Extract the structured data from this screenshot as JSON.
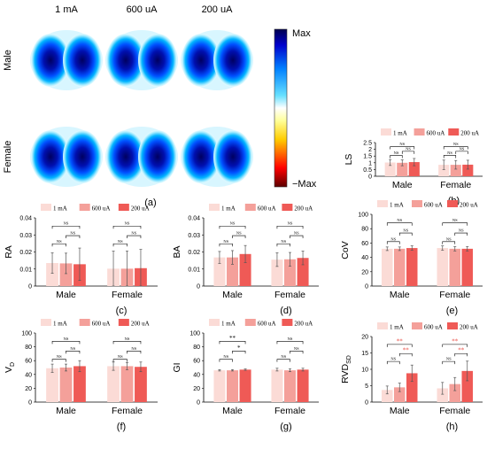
{
  "maps": {
    "columns": [
      "1 mA",
      "600 uA",
      "200 uA"
    ],
    "rows": [
      "Male",
      "Female"
    ],
    "colorbar": {
      "max_label": "Max",
      "min_label": "−Max",
      "colors": [
        "#ff0000",
        "#ff8c00",
        "#ffff66",
        "#ffffff",
        "#66ccff",
        "#0066ff",
        "#000080"
      ]
    },
    "panel_label": "(a)"
  },
  "chart_data": [
    {
      "type": "bar",
      "panel_label": "(b)",
      "ylabel": "LS",
      "ylim": [
        0,
        2.5
      ],
      "yticks": [
        "0",
        "0.5",
        "1",
        "1.5",
        "2",
        "2.5"
      ],
      "categories": [
        "Male",
        "Female"
      ],
      "series": [
        {
          "name": "1 mA",
          "values": [
            1.02,
            0.85
          ],
          "errors": [
            0.22,
            0.35
          ]
        },
        {
          "name": "600 uA",
          "values": [
            1.0,
            0.85
          ],
          "errors": [
            0.22,
            0.32
          ]
        },
        {
          "name": "200 uA",
          "values": [
            1.05,
            0.86
          ],
          "errors": [
            0.27,
            0.33
          ]
        }
      ],
      "significance": [
        [
          "NS",
          "NS",
          "NS"
        ],
        [
          "NS",
          "NS",
          "NS"
        ]
      ]
    },
    {
      "type": "bar",
      "panel_label": "(c)",
      "ylabel": "RA",
      "ylim": [
        0,
        0.04
      ],
      "yticks": [
        "0",
        "0.01",
        "0.02",
        "0.03",
        "0.04"
      ],
      "categories": [
        "Male",
        "Female"
      ],
      "series": [
        {
          "name": "1 mA",
          "values": [
            0.0135,
            0.0102
          ],
          "errors": [
            0.006,
            0.0103
          ]
        },
        {
          "name": "600 uA",
          "values": [
            0.0133,
            0.0102
          ],
          "errors": [
            0.006,
            0.0103
          ]
        },
        {
          "name": "200 uA",
          "values": [
            0.0128,
            0.0105
          ],
          "errors": [
            0.0095,
            0.011
          ]
        }
      ],
      "significance": [
        [
          "NS",
          "NS",
          "NS"
        ],
        [
          "NS",
          "NS",
          "NS"
        ]
      ]
    },
    {
      "type": "bar",
      "panel_label": "(d)",
      "ylabel": "BA",
      "ylim": [
        0,
        0.04
      ],
      "yticks": [
        "0",
        "0.01",
        "0.02",
        "0.03",
        "0.04"
      ],
      "categories": [
        "Male",
        "Female"
      ],
      "series": [
        {
          "name": "1 mA",
          "values": [
            0.0168,
            0.0155
          ],
          "errors": [
            0.0035,
            0.004
          ]
        },
        {
          "name": "600 uA",
          "values": [
            0.0168,
            0.0157
          ],
          "errors": [
            0.004,
            0.004
          ]
        },
        {
          "name": "200 uA",
          "values": [
            0.0188,
            0.0165
          ],
          "errors": [
            0.005,
            0.004
          ]
        }
      ],
      "significance": [
        [
          "NS",
          "NS",
          "NS"
        ],
        [
          "NS",
          "NS",
          "NS"
        ]
      ]
    },
    {
      "type": "bar",
      "panel_label": "(e)",
      "ylabel": "CoV",
      "ylim": [
        0,
        100
      ],
      "yticks": [
        "0",
        "20",
        "40",
        "60",
        "80",
        "100"
      ],
      "categories": [
        "Male",
        "Female"
      ],
      "series": [
        {
          "name": "1 mA",
          "values": [
            52,
            53
          ],
          "errors": [
            2.5,
            3
          ]
        },
        {
          "name": "600 uA",
          "values": [
            52,
            52
          ],
          "errors": [
            2.5,
            3
          ]
        },
        {
          "name": "200 uA",
          "values": [
            53,
            52
          ],
          "errors": [
            3,
            3
          ]
        }
      ],
      "significance": [
        [
          "NS",
          "NS",
          "NS"
        ],
        [
          "NS",
          "NS",
          "NS"
        ]
      ]
    },
    {
      "type": "bar",
      "panel_label": "(f)",
      "ylabel": "V",
      "ylabel_sub": "D",
      "ylim": [
        0,
        100
      ],
      "yticks": [
        "0",
        "20",
        "40",
        "60",
        "80",
        "100"
      ],
      "categories": [
        "Male",
        "Female"
      ],
      "series": [
        {
          "name": "1 mA",
          "values": [
            49,
            52
          ],
          "errors": [
            6,
            6
          ]
        },
        {
          "name": "600 uA",
          "values": [
            50,
            52
          ],
          "errors": [
            5,
            5
          ]
        },
        {
          "name": "200 uA",
          "values": [
            52,
            51
          ],
          "errors": [
            8,
            7
          ]
        }
      ],
      "significance": [
        [
          "NS",
          "NS",
          "NS"
        ],
        [
          "NS",
          "NS",
          "NS"
        ]
      ]
    },
    {
      "type": "bar",
      "panel_label": "(g)",
      "ylabel": "GI",
      "ylim": [
        0,
        100
      ],
      "yticks": [
        "0",
        "20",
        "40",
        "60",
        "80",
        "100"
      ],
      "categories": [
        "Male",
        "Female"
      ],
      "series": [
        {
          "name": "1 mA",
          "values": [
            46,
            47
          ],
          "errors": [
            1,
            2
          ]
        },
        {
          "name": "600 uA",
          "values": [
            46,
            46
          ],
          "errors": [
            1,
            2
          ]
        },
        {
          "name": "200 uA",
          "values": [
            47,
            47
          ],
          "errors": [
            1,
            2
          ]
        }
      ],
      "significance": [
        [
          "**",
          "NS",
          "*"
        ],
        [
          "NS",
          "NS",
          "NS"
        ]
      ]
    },
    {
      "type": "bar",
      "panel_label": "(h)",
      "ylabel": "RVD",
      "ylabel_sub": "SD",
      "ylim": [
        0,
        20
      ],
      "yticks": [
        "0",
        "5",
        "10",
        "15",
        "20"
      ],
      "categories": [
        "Male",
        "Female"
      ],
      "series": [
        {
          "name": "1 mA",
          "values": [
            3.7,
            4.2
          ],
          "errors": [
            1.2,
            1.8
          ]
        },
        {
          "name": "600 uA",
          "values": [
            4.5,
            5.5
          ],
          "errors": [
            1.3,
            2
          ]
        },
        {
          "name": "200 uA",
          "values": [
            8.8,
            9.5
          ],
          "errors": [
            2.5,
            3
          ]
        }
      ],
      "significance": [
        [
          "**",
          "NS",
          "**"
        ],
        [
          "**",
          "NS",
          "**"
        ]
      ]
    }
  ],
  "styles": {
    "series_colors": [
      "#fbdbd6",
      "#f4a09a",
      "#ef5a56"
    ],
    "sig_red": "#e8433b",
    "sig_black": "#000000"
  }
}
